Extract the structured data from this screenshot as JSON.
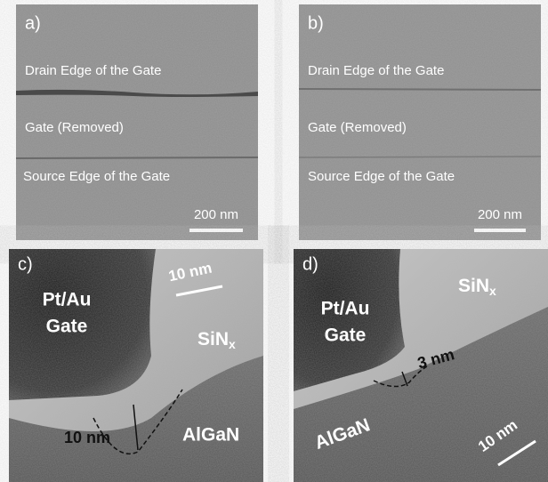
{
  "panels": [
    {
      "label": "a)",
      "texts": [
        "Drain Edge of the Gate",
        "Gate (Removed)",
        "Source Edge of the Gate"
      ],
      "scale_bar": "200 nm"
    },
    {
      "label": "b)",
      "texts": [
        "Drain Edge of the Gate",
        "Gate (Removed)",
        "Source Edge of the Gate"
      ],
      "scale_bar": "200 nm"
    },
    {
      "label": "c)",
      "gate": [
        "Pt/Au",
        "Gate"
      ],
      "dielectric": {
        "text": "SiN",
        "subscript": "x"
      },
      "barrier": "AlGaN",
      "scale_bar": "10 nm",
      "gap": "10 nm"
    },
    {
      "label": "d)",
      "gate": [
        "Pt/Au",
        "Gate"
      ],
      "dielectric": {
        "text": "SiN",
        "subscript": "x"
      },
      "barrier": "AlGaN",
      "scale_bar": "10 nm",
      "gap": "3 nm"
    }
  ]
}
